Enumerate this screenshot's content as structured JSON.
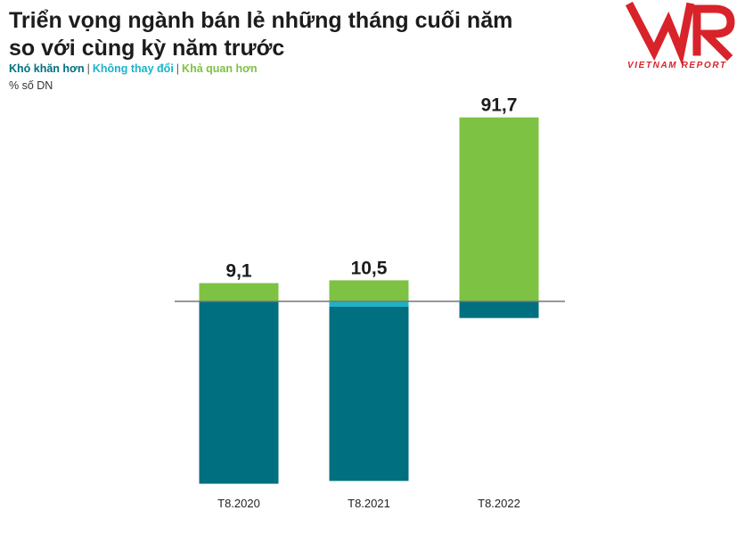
{
  "title_line1": "Triển vọng ngành bán lẻ những tháng cuối năm",
  "title_line2": "so với cùng kỳ năm trước",
  "legend": {
    "items": [
      {
        "label": "Khó khăn hơn",
        "color": "#006f80"
      },
      {
        "label": "Không thay đổi",
        "color": "#19b4c9"
      },
      {
        "label": "Khả quan hơn",
        "color": "#7dc243"
      }
    ]
  },
  "unit": "% số DN",
  "logo": {
    "mark": "VNR",
    "subtitle": "VIETNAM REPORT",
    "color": "#d8232a"
  },
  "chart_data": {
    "type": "bar",
    "stacked": true,
    "diverging": true,
    "categories": [
      "T8.2020",
      "T8.2021",
      "T8.2022"
    ],
    "series": [
      {
        "name": "Khó khăn hơn",
        "color": "#006f80",
        "values": [
          -90.9,
          -86.9,
          -8.3
        ]
      },
      {
        "name": "Không thay đổi",
        "color": "#19b4c9",
        "values": [
          0,
          -2.6,
          0
        ]
      },
      {
        "name": "Khả quan hơn",
        "color": "#7dc243",
        "values": [
          9.1,
          10.5,
          91.7
        ]
      }
    ],
    "data_labels": [
      "9,1",
      "10,5",
      "91,7"
    ],
    "ylim": [
      -91,
      92
    ],
    "grid": false,
    "legend_position": "top-left"
  }
}
